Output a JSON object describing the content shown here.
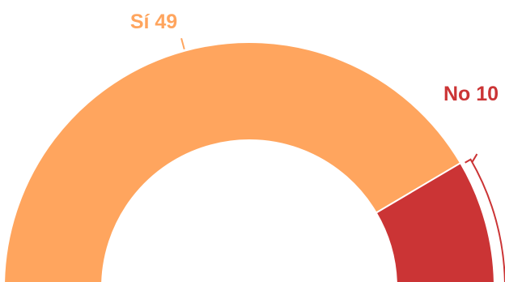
{
  "chart_data": {
    "type": "pie",
    "variant": "semicircle-donut",
    "title": "",
    "slices": [
      {
        "label": "Sí",
        "value": 49,
        "color": "#FFA55E",
        "label_text": "Sí 49"
      },
      {
        "label": "No",
        "value": 10,
        "color": "#CB3435",
        "label_text": "No 10"
      }
    ],
    "legend": "none"
  }
}
